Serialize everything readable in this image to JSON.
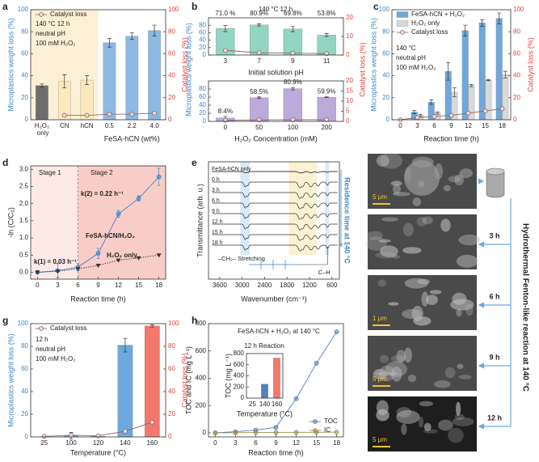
{
  "chart_data": [
    {
      "type": "bar",
      "label": "a",
      "categories": [
        "H₂O₂ only",
        "CN",
        "hCN",
        "0.5",
        "2.2",
        "4.0"
      ],
      "x_label": "FeSA-hCN (wt%)",
      "y_label": "Microplastics weight loss (%)",
      "y2_label": "Catalyst loss (%)",
      "ycolor": "#3d85c6",
      "y2color": "#e0443a",
      "ylim": [
        0,
        100
      ],
      "yticks": [
        0,
        20,
        40,
        60,
        80,
        100
      ],
      "y2lim": [
        0,
        100
      ],
      "y2ticks": [
        0,
        20,
        40,
        60,
        80,
        100
      ],
      "legend": "upper left",
      "annotations": [
        "140 °C  12 h",
        "neutral pH",
        "100 mM H₂O₂"
      ],
      "series": [
        {
          "type": "bar",
          "colors": [
            "#6e6e6e",
            "#fde7bd",
            "#fde7bd",
            "#8bb9e2",
            "#8bb9e2",
            "#8bb9e2"
          ],
          "values": [
            31,
            35,
            36,
            70,
            76,
            81
          ],
          "errors": [
            1.5,
            6,
            4,
            4,
            3,
            5
          ]
        },
        {
          "type": "line",
          "name": "Catalyst loss",
          "axis": "y2",
          "color": "#8b6a6a",
          "values": [
            null,
            4,
            4,
            5,
            5,
            6
          ]
        }
      ]
    },
    {
      "type": "bar",
      "label": "b",
      "categories": [
        "3",
        "7",
        "9",
        "11"
      ],
      "x_label": "Initial solution pH",
      "y_label": "Microplastics weight loss (%)",
      "y2_label": "Catalyst loss (%)",
      "ycolor": "#3d85c6",
      "y2color": "#e0443a",
      "ylim": [
        0,
        100
      ],
      "yticks": [
        0,
        20,
        40,
        60,
        80
      ],
      "y2lim": [
        0,
        20
      ],
      "y2ticks": [
        0,
        10,
        20
      ],
      "annotations": [
        "140 °C  12 h"
      ],
      "series": [
        {
          "type": "bar",
          "color": "#92d5c3",
          "values": [
            71.0,
            80.9,
            69.8,
            53.8
          ],
          "value_labels": [
            "71.0 %",
            "80.9%",
            "69.8%",
            "53.8%"
          ],
          "errors": [
            8,
            3,
            7,
            4
          ]
        },
        {
          "type": "line",
          "axis": "y2",
          "color": "#8b6a6a",
          "values": [
            2.5,
            1.2,
            1,
            0.8
          ]
        }
      ]
    },
    {
      "type": "bar",
      "categories": [
        "0",
        "50",
        "100",
        "200"
      ],
      "x_label": "H₂O₂ Concentration (mM)",
      "ycolor": "#3d85c6",
      "y2color": "#e0443a",
      "ylim": [
        0,
        100
      ],
      "yticks": [
        0,
        20,
        40,
        60,
        80
      ],
      "y2lim": [
        0,
        20
      ],
      "y2ticks": [
        0,
        5,
        10,
        15,
        20
      ],
      "series": [
        {
          "type": "bar",
          "color": "#bcaadb",
          "values": [
            8.4,
            58.5,
            80.9,
            59.9
          ],
          "value_labels": [
            "8.4%",
            "58.5%",
            "80.9%",
            "59.9%"
          ],
          "errors": [
            4,
            2,
            3,
            1
          ]
        },
        {
          "type": "line",
          "axis": "y2",
          "color": "#8b6a6a",
          "values": [
            0.5,
            0.7,
            0.8,
            0.8
          ]
        }
      ]
    },
    {
      "type": "bar",
      "label": "c",
      "categories": [
        "0",
        "3",
        "6",
        "9",
        "12",
        "15",
        "18"
      ],
      "x_label": "Reaction time (h)",
      "y_label": "Microplastics weight loss (%)",
      "y2_label": "Catalyst loss (%)",
      "ycolor": "#3d85c6",
      "y2color": "#e0443a",
      "ylim": [
        0,
        100
      ],
      "yticks": [
        0,
        20,
        40,
        60,
        80,
        100
      ],
      "y2lim": [
        0,
        100
      ],
      "y2ticks": [
        0,
        20,
        40,
        60,
        80,
        100
      ],
      "legend": "upper left",
      "annotations": [
        "140 °C",
        "neutral pH",
        "100 mM H₂O₂"
      ],
      "series": [
        {
          "type": "bar",
          "name": "FeSA-hCN + H₂O₂",
          "color": "#6fa8dc",
          "values": [
            0,
            7,
            16,
            44,
            81,
            88,
            92
          ],
          "errors": [
            0,
            1.5,
            2,
            8,
            5,
            3,
            5
          ]
        },
        {
          "type": "bar",
          "name": "H₂O₂ only",
          "color": "#d9d9d9",
          "values": [
            0,
            4,
            6,
            25,
            31,
            36,
            41
          ],
          "errors": [
            0,
            1,
            1,
            4,
            1,
            0.5,
            3
          ]
        },
        {
          "type": "line",
          "name": "Catalyst loss",
          "axis": "y2",
          "color": "#8b6a6a",
          "values": [
            0,
            2,
            3,
            4,
            6,
            8,
            10
          ]
        }
      ]
    },
    {
      "type": "scatter",
      "label": "d",
      "x": [
        0,
        3,
        6,
        9,
        12,
        15,
        18
      ],
      "xlim": [
        -1,
        19
      ],
      "xticks": [
        0,
        3,
        6,
        9,
        12,
        15,
        18
      ],
      "ylim": [
        -0.2,
        3.1
      ],
      "yticks": [
        {
          "value": 0,
          "label": "0.0"
        },
        {
          "value": 0.5,
          "label": "0.5"
        },
        {
          "value": 1,
          "label": "1.0"
        },
        {
          "value": 1.5,
          "label": "1.5"
        },
        {
          "value": 2,
          "label": "2.0"
        },
        {
          "value": 2.5,
          "label": "2.5"
        },
        {
          "value": 3,
          "label": "3.0"
        }
      ],
      "x_label": "Reaction time (h)",
      "y_label": "-ln (C/C₀)",
      "annotations": [
        "Stage 1",
        "Stage 2",
        "k(2) = 0.22 h⁻¹",
        "k(1) = 0.03 h⁻¹",
        "FeSA-hCN/H₂O₂",
        "H₂O₂ only"
      ],
      "series": [
        {
          "color": "#3d85c6",
          "marker": "circle",
          "values": [
            0,
            0.05,
            0.15,
            0.55,
            1.7,
            2.15,
            2.78
          ],
          "errors": [
            0.05,
            0.2,
            0.1,
            0.15,
            0.1,
            0.08,
            0.25
          ]
        },
        {
          "color": "#333333",
          "marker": "triangle",
          "line": "dotted",
          "values": [
            0,
            0.03,
            0.1,
            0.2,
            0.35,
            0.42,
            0.5
          ]
        }
      ]
    },
    {
      "type": "spectra",
      "label": "e",
      "xlim": [
        3900,
        400
      ],
      "xticks": [
        3600,
        3000,
        2400,
        1800,
        1200,
        600
      ],
      "x_label": "Wavenumber (cm⁻¹)",
      "y_label": "Transmittance (arb. u.)",
      "traces": [
        "FeSA-hCN only",
        "0 h",
        "3 h",
        "6 h",
        "9 h",
        "12 h",
        "15 h",
        "18 h"
      ],
      "annotations": [
        "–CH₂– Stretching",
        "C–H"
      ],
      "side_label": "Residence time at 140 °C"
    },
    {
      "type": "images",
      "label": "f",
      "title": "Hydrothermal Fenton-like reaction at 140 °C",
      "images": [
        {
          "scale": "5 μm"
        },
        {
          "time": "3 h"
        },
        {
          "time": "6 h",
          "scale": "1 μm"
        },
        {
          "time": "9 h",
          "scale": "5 μm"
        },
        {
          "time": "12 h",
          "scale": "5 μm"
        }
      ]
    },
    {
      "type": "bar",
      "label": "g",
      "categories": [
        "25",
        "100",
        "120",
        "140",
        "160"
      ],
      "x_label": "Temperature (°C)",
      "y_label": "Microplastics weight loss (%)",
      "y2_label": "Catalyst loss (%)",
      "ycolor": "#3d85c6",
      "y2color": "#e0443a",
      "ylim": [
        0,
        100
      ],
      "yticks": [
        0,
        20,
        40,
        60,
        80,
        100
      ],
      "y2lim": [
        0,
        100
      ],
      "y2ticks": [
        0,
        20,
        40,
        60,
        80,
        100
      ],
      "legend": "upper left",
      "annotations": [
        "12 h",
        "neutral pH",
        "100 mM H₂O₂"
      ],
      "series": [
        {
          "type": "bar",
          "colors": [
            "#6fa8dc",
            "#6fa8dc",
            "#6fa8dc",
            "#6fa8dc",
            "#f4796b"
          ],
          "values": [
            0,
            1,
            0.5,
            81,
            98
          ],
          "errors": [
            0,
            3,
            0,
            6,
            1
          ]
        },
        {
          "type": "line",
          "name": "Catalyst loss",
          "axis": "y2",
          "color": "#8b6a6a",
          "values": [
            0.5,
            1.5,
            1,
            5,
            13
          ]
        }
      ]
    },
    {
      "type": "scatter",
      "label": "h",
      "x": [
        0,
        3,
        6,
        9,
        12,
        15,
        18
      ],
      "xlim": [
        -1,
        19
      ],
      "xticks": [
        0,
        3,
        6,
        9,
        12,
        15,
        18
      ],
      "ylim": [
        -30,
        800
      ],
      "yticks": [
        0,
        200,
        400,
        600,
        800
      ],
      "x_label": "Reaction time (h)",
      "y_label": "TOC and IC (mg L⁻¹)",
      "legend": "lower right",
      "annotations": [
        "FeSA-hCN + H₂O₂ at 140 °C"
      ],
      "series": [
        {
          "name": "TOC",
          "color": "#4f81bd",
          "marker": "circle",
          "values": [
            0,
            8,
            20,
            40,
            250,
            510,
            740
          ]
        },
        {
          "name": "IC",
          "color": "#a08b4e",
          "marker": "circle",
          "values": [
            0,
            1,
            2,
            3,
            4,
            4,
            5
          ]
        }
      ]
    },
    {
      "type": "bar",
      "categories": [
        "25",
        "140",
        "160"
      ],
      "x_label": "Temperature (°C)",
      "y_label": "TOC (mg L⁻¹)",
      "ylim": [
        0,
        800
      ],
      "yticks": [
        0,
        200,
        400,
        600,
        800
      ],
      "annotations": [
        "12 h Reaction"
      ],
      "series": [
        {
          "type": "bar",
          "colors": [
            "#4f81bd",
            "#4f81bd",
            "#f4796b"
          ],
          "values": [
            0,
            250,
            720
          ]
        }
      ]
    }
  ]
}
